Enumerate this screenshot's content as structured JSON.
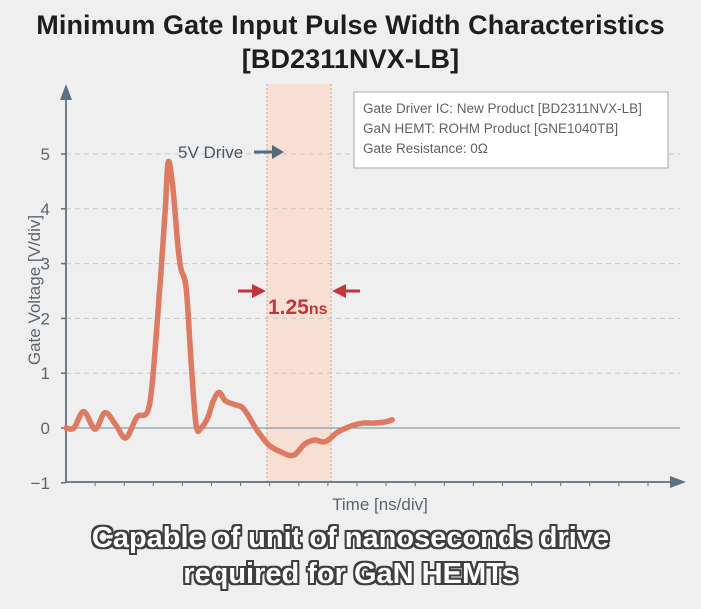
{
  "title": {
    "line1": "Minimum Gate Input Pulse Width Characteristics",
    "line2": "[BD2311NVX-LB]"
  },
  "footer": {
    "line1": "Capable of unit of nanoseconds drive",
    "line2": "required for GaN HEMTs"
  },
  "chart_data": {
    "type": "line",
    "xlabel": "Time [ns/div]",
    "ylabel": "Gate Voltage [V/div]",
    "ylim": [
      -1,
      5
    ],
    "yticks": [
      -1,
      0,
      1,
      2,
      3,
      4,
      5
    ],
    "grid": true,
    "legend_box": {
      "position": "top-right",
      "lines": [
        "Gate Driver IC: New Product [BD2311NVX-LB]",
        "GaN HEMT: ROHM  Product [GNE1040TB]",
        "Gate Resistance: 0Ω"
      ]
    },
    "annotations": {
      "drive_label": "5V Drive",
      "pulse_width_value": "1.25",
      "pulse_width_unit": "ns"
    },
    "colors": {
      "trace": "#dc7a62",
      "band": "#f8dfd3",
      "arrow_red": "#c4343b",
      "arrow_slate": "#546a7a",
      "axis": "#5b7184",
      "grid": "#c8c8c8"
    },
    "series": [
      {
        "values_note_free": true,
        "x": [
          0,
          0.27,
          0.61,
          1.0,
          1.34,
          1.72,
          2.06,
          2.44,
          2.86,
          3.13,
          3.4,
          3.51,
          3.67,
          3.84,
          3.95,
          4.13,
          4.3,
          4.47,
          4.64,
          4.88,
          5.05,
          5.26,
          5.47,
          5.78,
          6.05,
          6.26,
          6.54,
          6.95,
          7.36,
          7.81,
          8.19,
          8.53,
          8.91,
          9.32,
          9.63,
          9.87,
          10.21,
          10.52,
          10.83,
          11.04,
          11.21
        ],
        "y": [
          0.0,
          0.0,
          0.3,
          -0.02,
          0.28,
          0.05,
          -0.18,
          0.2,
          0.4,
          1.9,
          3.9,
          4.85,
          4.4,
          3.35,
          2.9,
          2.55,
          1.2,
          0.05,
          0.0,
          0.2,
          0.48,
          0.65,
          0.5,
          0.43,
          0.38,
          0.23,
          -0.02,
          -0.3,
          -0.43,
          -0.5,
          -0.3,
          -0.22,
          -0.25,
          -0.08,
          0.0,
          0.05,
          0.09,
          0.09,
          0.1,
          0.12,
          0.15
        ]
      }
    ]
  }
}
